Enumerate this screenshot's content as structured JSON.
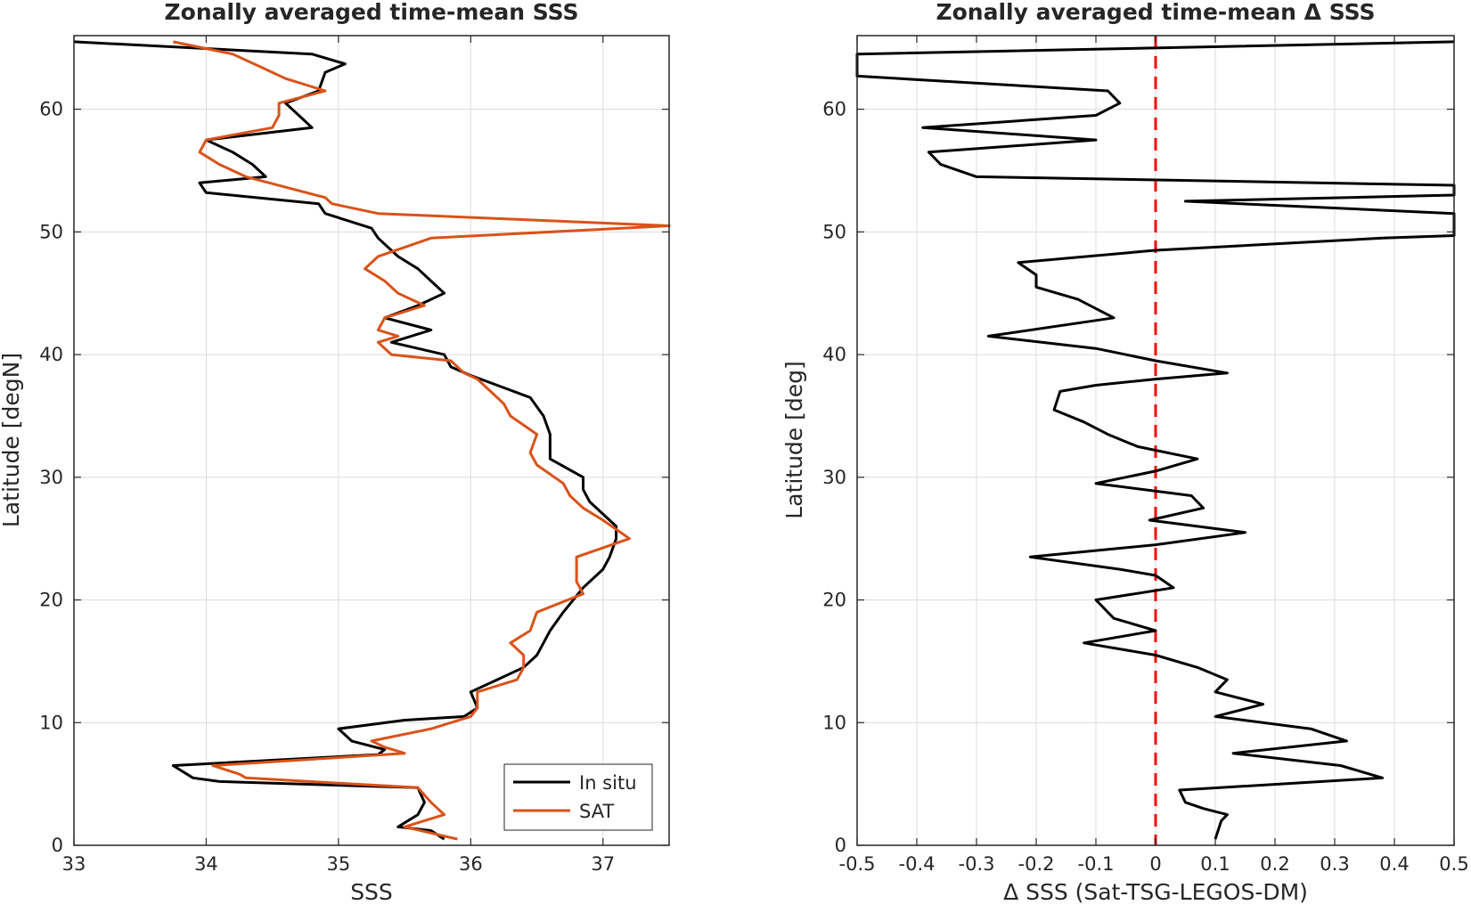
{
  "chart_data": [
    {
      "type": "line",
      "title": "Zonally averaged time-mean SSS",
      "xlabel": "SSS",
      "ylabel": "Latitude [degN]",
      "xlim": [
        33,
        37.5
      ],
      "ylim": [
        0,
        66
      ],
      "xticks": [
        "33",
        "34",
        "35",
        "36",
        "37"
      ],
      "yticks": [
        "0",
        "10",
        "20",
        "30",
        "40",
        "50",
        "60"
      ],
      "grid": true,
      "legend_position": "bottom-right",
      "series": [
        {
          "name": "In situ",
          "color": "#000000",
          "points": [
            [
              35.8,
              0.5
            ],
            [
              35.7,
              1.2
            ],
            [
              35.45,
              1.5
            ],
            [
              35.6,
              2.5
            ],
            [
              35.65,
              3.5
            ],
            [
              35.6,
              4.7
            ],
            [
              34.1,
              5.2
            ],
            [
              33.9,
              5.5
            ],
            [
              33.75,
              6.5
            ],
            [
              35.3,
              7.4
            ],
            [
              35.35,
              7.8
            ],
            [
              35.1,
              8.5
            ],
            [
              35.0,
              9.5
            ],
            [
              35.5,
              10.2
            ],
            [
              35.95,
              10.5
            ],
            [
              36.05,
              11.2
            ],
            [
              36.0,
              12.5
            ],
            [
              36.2,
              13.5
            ],
            [
              36.4,
              14.5
            ],
            [
              36.5,
              15.5
            ],
            [
              36.55,
              16.5
            ],
            [
              36.6,
              17.5
            ],
            [
              36.7,
              19.0
            ],
            [
              36.85,
              21.0
            ],
            [
              37.0,
              22.5
            ],
            [
              37.05,
              23.5
            ],
            [
              37.1,
              25.0
            ],
            [
              37.1,
              26.0
            ],
            [
              37.0,
              27.0
            ],
            [
              36.9,
              28.0
            ],
            [
              36.85,
              29.0
            ],
            [
              36.85,
              30.0
            ],
            [
              36.6,
              31.5
            ],
            [
              36.6,
              32.5
            ],
            [
              36.6,
              33.5
            ],
            [
              36.55,
              35.0
            ],
            [
              36.45,
              36.5
            ],
            [
              36.2,
              37.5
            ],
            [
              36.0,
              38.3
            ],
            [
              35.85,
              39.0
            ],
            [
              35.8,
              40.0
            ],
            [
              35.6,
              40.5
            ],
            [
              35.4,
              41.0
            ],
            [
              35.7,
              42.0
            ],
            [
              35.35,
              43.0
            ],
            [
              35.6,
              44.0
            ],
            [
              35.8,
              45.0
            ],
            [
              35.7,
              46.0
            ],
            [
              35.6,
              47.0
            ],
            [
              35.45,
              48.0
            ],
            [
              35.3,
              49.5
            ],
            [
              35.25,
              50.3
            ],
            [
              34.9,
              51.5
            ],
            [
              34.85,
              52.3
            ],
            [
              34.0,
              53.2
            ],
            [
              33.95,
              54.0
            ],
            [
              34.45,
              54.5
            ],
            [
              34.35,
              55.5
            ],
            [
              34.2,
              56.5
            ],
            [
              34.0,
              57.5
            ],
            [
              34.8,
              58.5
            ],
            [
              34.7,
              59.5
            ],
            [
              34.6,
              60.5
            ],
            [
              34.85,
              61.5
            ],
            [
              34.9,
              63.0
            ],
            [
              35.05,
              63.7
            ],
            [
              34.8,
              64.5
            ],
            [
              33.0,
              65.5
            ]
          ]
        },
        {
          "name": "SAT",
          "color": "#D95319",
          "points": [
            [
              35.9,
              0.5
            ],
            [
              35.5,
              1.5
            ],
            [
              35.8,
              2.5
            ],
            [
              35.7,
              3.5
            ],
            [
              35.6,
              4.7
            ],
            [
              34.3,
              5.5
            ],
            [
              34.25,
              5.8
            ],
            [
              34.05,
              6.5
            ],
            [
              35.5,
              7.5
            ],
            [
              35.35,
              8.0
            ],
            [
              35.25,
              8.5
            ],
            [
              35.7,
              9.5
            ],
            [
              36.0,
              10.5
            ],
            [
              36.05,
              11.2
            ],
            [
              36.05,
              12.5
            ],
            [
              36.35,
              13.5
            ],
            [
              36.4,
              14.5
            ],
            [
              36.4,
              15.5
            ],
            [
              36.3,
              16.5
            ],
            [
              36.45,
              17.5
            ],
            [
              36.5,
              19.0
            ],
            [
              36.85,
              20.5
            ],
            [
              36.8,
              21.5
            ],
            [
              36.8,
              23.5
            ],
            [
              37.2,
              25.0
            ],
            [
              37.0,
              26.5
            ],
            [
              36.85,
              27.5
            ],
            [
              36.75,
              28.5
            ],
            [
              36.7,
              29.5
            ],
            [
              36.5,
              31.0
            ],
            [
              36.45,
              32.0
            ],
            [
              36.5,
              33.5
            ],
            [
              36.3,
              35.0
            ],
            [
              36.25,
              36.0
            ],
            [
              36.15,
              37.0
            ],
            [
              36.05,
              38.0
            ],
            [
              35.95,
              38.5
            ],
            [
              35.85,
              39.5
            ],
            [
              35.4,
              40.0
            ],
            [
              35.3,
              41.0
            ],
            [
              35.45,
              41.5
            ],
            [
              35.3,
              42.0
            ],
            [
              35.35,
              43.0
            ],
            [
              35.65,
              44.0
            ],
            [
              35.45,
              45.0
            ],
            [
              35.35,
              46.0
            ],
            [
              35.2,
              47.0
            ],
            [
              35.3,
              48.0
            ],
            [
              35.7,
              49.5
            ],
            [
              37.5,
              50.5
            ],
            [
              35.3,
              51.5
            ],
            [
              34.95,
              52.3
            ],
            [
              34.9,
              52.8
            ],
            [
              34.3,
              54.5
            ],
            [
              34.1,
              55.5
            ],
            [
              33.95,
              56.5
            ],
            [
              34.0,
              57.5
            ],
            [
              34.5,
              58.5
            ],
            [
              34.55,
              59.5
            ],
            [
              34.55,
              60.5
            ],
            [
              34.9,
              61.5
            ],
            [
              34.6,
              62.5
            ],
            [
              34.4,
              63.5
            ],
            [
              34.2,
              64.5
            ],
            [
              33.75,
              65.5
            ]
          ]
        }
      ]
    },
    {
      "type": "line",
      "title": "Zonally averaged time-mean Δ SSS",
      "xlabel": "Δ SSS (Sat-TSG-LEGOS-DM)",
      "ylabel": "Latitude [deg]",
      "xlim": [
        -0.5,
        0.5
      ],
      "ylim": [
        0,
        66
      ],
      "xticks": [
        "-0.5",
        "-0.4",
        "-0.3",
        "-0.2",
        "-0.1",
        "0",
        "0.1",
        "0.2",
        "0.3",
        "0.4",
        "0.5"
      ],
      "yticks": [
        "0",
        "10",
        "20",
        "30",
        "40",
        "50",
        "60"
      ],
      "grid": true,
      "reference_line": {
        "x": 0,
        "color": "#FF0000",
        "style": "dashed"
      },
      "series": [
        {
          "color": "#000000",
          "points": [
            [
              0.1,
              0.5
            ],
            [
              0.11,
              2.0
            ],
            [
              0.12,
              2.5
            ],
            [
              0.08,
              3.0
            ],
            [
              0.05,
              3.5
            ],
            [
              0.04,
              4.5
            ],
            [
              0.38,
              5.5
            ],
            [
              0.31,
              6.5
            ],
            [
              0.13,
              7.5
            ],
            [
              0.32,
              8.5
            ],
            [
              0.26,
              9.5
            ],
            [
              0.1,
              10.5
            ],
            [
              0.18,
              11.5
            ],
            [
              0.1,
              12.5
            ],
            [
              0.12,
              13.5
            ],
            [
              0.07,
              14.5
            ],
            [
              0.0,
              15.5
            ],
            [
              -0.12,
              16.5
            ],
            [
              0.0,
              17.5
            ],
            [
              -0.07,
              18.5
            ],
            [
              -0.1,
              20.0
            ],
            [
              0.03,
              21.0
            ],
            [
              0.0,
              22.0
            ],
            [
              -0.06,
              22.5
            ],
            [
              -0.21,
              23.5
            ],
            [
              0.0,
              24.5
            ],
            [
              0.15,
              25.5
            ],
            [
              -0.01,
              26.5
            ],
            [
              0.08,
              27.5
            ],
            [
              0.06,
              28.5
            ],
            [
              -0.1,
              29.5
            ],
            [
              0.0,
              30.5
            ],
            [
              0.07,
              31.5
            ],
            [
              -0.03,
              32.5
            ],
            [
              -0.08,
              33.5
            ],
            [
              -0.12,
              34.5
            ],
            [
              -0.17,
              35.5
            ],
            [
              -0.16,
              37.0
            ],
            [
              -0.1,
              37.5
            ],
            [
              0.0,
              38.0
            ],
            [
              0.12,
              38.5
            ],
            [
              0.0,
              39.5
            ],
            [
              -0.1,
              40.5
            ],
            [
              -0.28,
              41.5
            ],
            [
              -0.07,
              43.0
            ],
            [
              -0.13,
              44.5
            ],
            [
              -0.2,
              45.5
            ],
            [
              -0.2,
              46.5
            ],
            [
              -0.23,
              47.5
            ],
            [
              0.0,
              48.5
            ],
            [
              0.38,
              49.5
            ],
            [
              0.5,
              49.7
            ],
            [
              0.5,
              51.5
            ],
            [
              0.05,
              52.5
            ],
            [
              0.5,
              53.0
            ],
            [
              0.5,
              53.8
            ],
            [
              -0.3,
              54.5
            ],
            [
              -0.36,
              55.5
            ],
            [
              -0.38,
              56.5
            ],
            [
              -0.1,
              57.5
            ],
            [
              -0.39,
              58.5
            ],
            [
              -0.1,
              59.5
            ],
            [
              -0.06,
              60.5
            ],
            [
              -0.08,
              61.5
            ],
            [
              -0.5,
              62.7
            ],
            [
              -0.5,
              64.5
            ],
            [
              0.5,
              65.5
            ]
          ]
        }
      ]
    }
  ],
  "legend": {
    "entries": [
      {
        "label": "In situ",
        "color": "#000000"
      },
      {
        "label": "SAT",
        "color": "#D95319"
      }
    ]
  }
}
